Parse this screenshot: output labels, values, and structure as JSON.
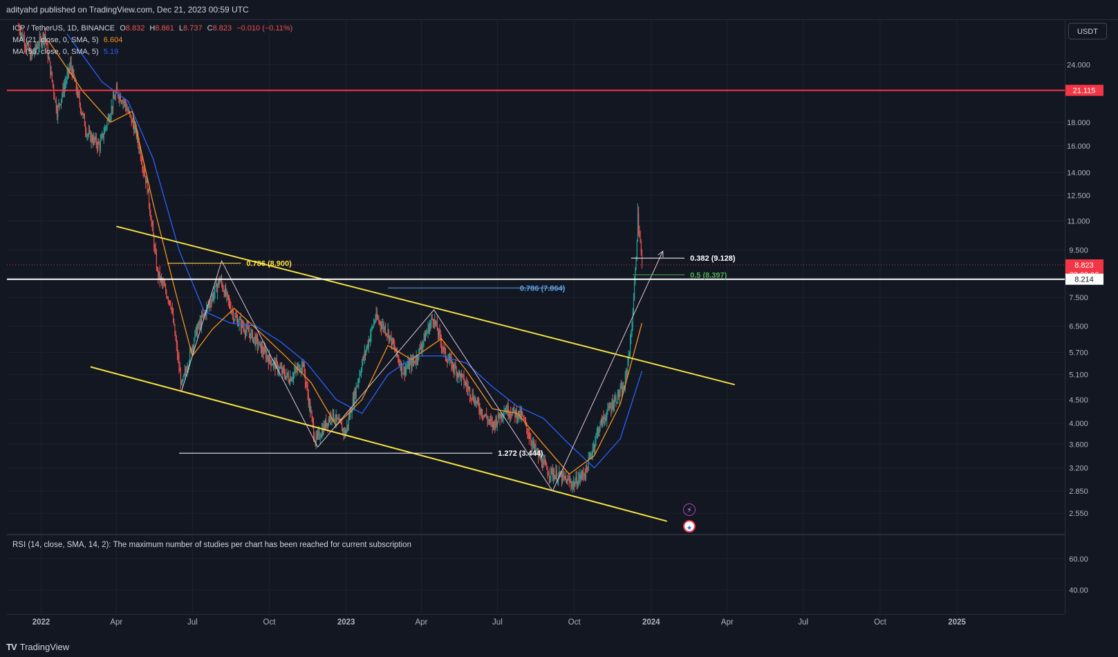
{
  "header": {
    "published": "adityahd published on TradingView.com, Dec 21, 2023 00:59 UTC"
  },
  "legend": {
    "symbol": "ICP / TetherUS, 1D, BINANCE",
    "o_label": "O",
    "o": "8.832",
    "h_label": "H",
    "h": "8.861",
    "l_label": "L",
    "l": "8.737",
    "c_label": "C",
    "c": "8.823",
    "change": "−0.010 (−0.11%)",
    "ma21_label": "MA (21, close, 0, SMA, 5)",
    "ma21_value": "6.604",
    "ma55_label": "MA (55, close, 0, SMA, 5)",
    "ma55_value": "5.19"
  },
  "currency_button": "USDT",
  "rsi_note": "RSI (14, close, SMA, 14, 2): The maximum number of studies per chart has been reached for current subscription",
  "footer": {
    "brand": "TradingView"
  },
  "colors": {
    "background": "#131722",
    "bull": "#26a69a",
    "bear": "#ef5350",
    "ma21": "#f7931a",
    "ma55": "#2962ff",
    "channel": "#f5e342",
    "resistance": "#f23645",
    "support": "#ffffff"
  },
  "chart_data": {
    "type": "candlestick",
    "y_scale": "log",
    "ylim": [
      2.3,
      30
    ],
    "x_range": [
      "2021-11-21",
      "2025-05-10"
    ],
    "x_tick_labels": [
      "2022",
      "Apr",
      "Jul",
      "Oct",
      "2023",
      "Apr",
      "Jul",
      "Oct",
      "2024",
      "Apr",
      "Jul",
      "Oct",
      "2025"
    ],
    "x_tick_dates": [
      "2022-01-01",
      "2022-04-01",
      "2022-07-01",
      "2022-10-01",
      "2023-01-01",
      "2023-04-01",
      "2023-07-01",
      "2023-10-01",
      "2024-01-01",
      "2024-04-01",
      "2024-07-01",
      "2024-10-01",
      "2025-01-01"
    ],
    "y_tick_labels": [
      "24.000",
      "18.000",
      "16.000",
      "14.000",
      "12.500",
      "11.000",
      "9.500",
      "7.500",
      "6.500",
      "5.700",
      "5.100",
      "4.500",
      "4.000",
      "3.600",
      "3.200",
      "2.850",
      "2.550"
    ],
    "price_path": [
      [
        "2021-12-05",
        29
      ],
      [
        "2021-12-20",
        25
      ],
      [
        "2022-01-05",
        28
      ],
      [
        "2022-01-20",
        19
      ],
      [
        "2022-02-05",
        24
      ],
      [
        "2022-02-25",
        17
      ],
      [
        "2022-03-12",
        16
      ],
      [
        "2022-04-01",
        21
      ],
      [
        "2022-04-10",
        20
      ],
      [
        "2022-04-25",
        17
      ],
      [
        "2022-05-08",
        13
      ],
      [
        "2022-05-20",
        8.5
      ],
      [
        "2022-06-05",
        7.3
      ],
      [
        "2022-06-18",
        4.8
      ],
      [
        "2022-07-05",
        6.3
      ],
      [
        "2022-07-20",
        7.2
      ],
      [
        "2022-08-03",
        8.2
      ],
      [
        "2022-08-20",
        6.8
      ],
      [
        "2022-09-10",
        6.2
      ],
      [
        "2022-10-01",
        5.5
      ],
      [
        "2022-10-25",
        5.0
      ],
      [
        "2022-11-10",
        5.4
      ],
      [
        "2022-11-25",
        3.65
      ],
      [
        "2022-12-15",
        4.2
      ],
      [
        "2022-12-31",
        3.8
      ],
      [
        "2023-01-20",
        5.4
      ],
      [
        "2023-02-05",
        6.8
      ],
      [
        "2023-02-20",
        6.3
      ],
      [
        "2023-03-10",
        5.2
      ],
      [
        "2023-03-25",
        5.5
      ],
      [
        "2023-04-15",
        6.8
      ],
      [
        "2023-04-30",
        5.6
      ],
      [
        "2023-05-20",
        5.0
      ],
      [
        "2023-06-10",
        4.3
      ],
      [
        "2023-06-25",
        3.95
      ],
      [
        "2023-07-10",
        4.3
      ],
      [
        "2023-07-30",
        4.15
      ],
      [
        "2023-08-15",
        3.5
      ],
      [
        "2023-08-30",
        3.15
      ],
      [
        "2023-09-15",
        3.05
      ],
      [
        "2023-09-30",
        2.95
      ],
      [
        "2023-10-15",
        3.15
      ],
      [
        "2023-10-30",
        3.9
      ],
      [
        "2023-11-15",
        4.4
      ],
      [
        "2023-11-30",
        4.8
      ],
      [
        "2023-12-08",
        6.2
      ],
      [
        "2023-12-13",
        8.5
      ],
      [
        "2023-12-16",
        11.2
      ],
      [
        "2023-12-19",
        9.8
      ],
      [
        "2023-12-21",
        8.823
      ]
    ],
    "ma21_path": [
      [
        "2022-01-10",
        27
      ],
      [
        "2022-02-20",
        21
      ],
      [
        "2022-03-25",
        18
      ],
      [
        "2022-04-20",
        19
      ],
      [
        "2022-05-15",
        12
      ],
      [
        "2022-06-10",
        7.8
      ],
      [
        "2022-07-01",
        5.6
      ],
      [
        "2022-07-25",
        6.4
      ],
      [
        "2022-08-20",
        7.1
      ],
      [
        "2022-09-20",
        6.3
      ],
      [
        "2022-10-20",
        5.6
      ],
      [
        "2022-11-20",
        4.9
      ],
      [
        "2022-12-20",
        3.95
      ],
      [
        "2023-01-20",
        4.5
      ],
      [
        "2023-02-20",
        5.9
      ],
      [
        "2023-03-20",
        5.5
      ],
      [
        "2023-04-25",
        6.1
      ],
      [
        "2023-05-25",
        5.2
      ],
      [
        "2023-06-25",
        4.3
      ],
      [
        "2023-07-25",
        4.2
      ],
      [
        "2023-08-25",
        3.6
      ],
      [
        "2023-09-25",
        3.1
      ],
      [
        "2023-10-25",
        3.4
      ],
      [
        "2023-11-25",
        4.4
      ],
      [
        "2023-12-21",
        6.604
      ]
    ],
    "ma55_path": [
      [
        "2022-02-01",
        28
      ],
      [
        "2022-03-15",
        22
      ],
      [
        "2022-04-15",
        20
      ],
      [
        "2022-05-15",
        15
      ],
      [
        "2022-06-15",
        9.5
      ],
      [
        "2022-07-15",
        7.0
      ],
      [
        "2022-08-15",
        6.6
      ],
      [
        "2022-09-15",
        6.5
      ],
      [
        "2022-10-15",
        6.0
      ],
      [
        "2022-11-15",
        5.4
      ],
      [
        "2022-12-20",
        4.5
      ],
      [
        "2023-01-20",
        4.2
      ],
      [
        "2023-02-20",
        5.1
      ],
      [
        "2023-03-25",
        5.6
      ],
      [
        "2023-04-25",
        5.6
      ],
      [
        "2023-05-25",
        5.4
      ],
      [
        "2023-06-25",
        4.8
      ],
      [
        "2023-07-25",
        4.35
      ],
      [
        "2023-08-25",
        4.1
      ],
      [
        "2023-09-25",
        3.6
      ],
      [
        "2023-10-25",
        3.2
      ],
      [
        "2023-11-25",
        3.7
      ],
      [
        "2023-12-21",
        5.19
      ]
    ],
    "channel_upper": [
      [
        "2022-04-01",
        10.7
      ],
      [
        "2024-04-10",
        4.85
      ]
    ],
    "channel_lower": [
      [
        "2022-03-01",
        5.3
      ],
      [
        "2024-01-20",
        2.45
      ]
    ],
    "resistance_level": {
      "price": 21.115,
      "label": "21.115"
    },
    "support_level": {
      "price": 8.214,
      "label": "8.214"
    },
    "current_price": {
      "price": 8.823,
      "label": "8.823",
      "countdown": "23:00:06"
    },
    "pattern_path": [
      [
        "2022-06-18",
        4.7
      ],
      [
        "2022-08-05",
        9.0
      ],
      [
        "2022-11-28",
        3.55
      ],
      [
        "2023-04-16",
        7.05
      ],
      [
        "2023-09-05",
        2.85
      ],
      [
        "2024-01-15",
        9.45
      ]
    ],
    "fib_levels": [
      {
        "label": "0.786 (8.900)",
        "price": 8.9,
        "x1": "2022-06-01",
        "x2": "2022-08-28",
        "color": "#f5e342"
      },
      {
        "label": "1.272 (3.444)",
        "price": 3.444,
        "x1": "2022-06-15",
        "x2": "2023-06-25",
        "color": "#ffffff"
      },
      {
        "label": "0.786 (7.864)",
        "price": 7.864,
        "x1": "2023-02-20",
        "x2": "2023-09-20",
        "color": "#5ba3e6"
      },
      {
        "label": "0.382 (9.128)",
        "price": 9.128,
        "x1": "2023-12-08",
        "x2": "2024-02-10",
        "color": "#ffffff"
      },
      {
        "label": "0.5 (8.397)",
        "price": 8.397,
        "x1": "2023-12-10",
        "x2": "2024-02-10",
        "color": "#4caf50"
      }
    ],
    "rsi": {
      "y_tick_labels": [
        "60.00",
        "40.00"
      ],
      "ylim": [
        25,
        75
      ]
    }
  }
}
